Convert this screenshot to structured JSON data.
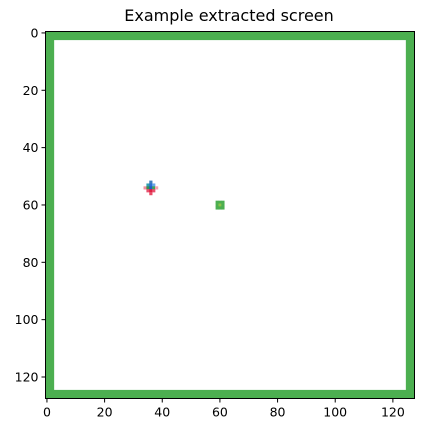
{
  "chart_data": {
    "type": "heatmap",
    "title": "Example extracted screen",
    "xlabel": "",
    "ylabel": "",
    "grid": false,
    "image_size": [
      128,
      128
    ],
    "xlim": [
      -0.5,
      127.5
    ],
    "ylim": [
      127.5,
      -0.5
    ],
    "x_ticks": [
      0,
      20,
      40,
      60,
      80,
      100,
      120
    ],
    "y_ticks": [
      0,
      20,
      40,
      60,
      80,
      100,
      120
    ],
    "background_color": "#ffffff",
    "border": {
      "color": "#4caf50",
      "thickness_cells": 3
    },
    "objects": [
      {
        "name": "agent",
        "cells": [
          {
            "x": 36,
            "y": 52,
            "color": "#3f7fbf"
          },
          {
            "x": 35,
            "y": 53,
            "color": "#2e9fb0"
          },
          {
            "x": 36,
            "y": 53,
            "color": "#2b6fd0"
          },
          {
            "x": 37,
            "y": 53,
            "color": "#6aa6e8"
          },
          {
            "x": 34,
            "y": 54,
            "color": "#f28fa0"
          },
          {
            "x": 35,
            "y": 54,
            "color": "#3a8f4f"
          },
          {
            "x": 36,
            "y": 54,
            "color": "#1f5fbf"
          },
          {
            "x": 37,
            "y": 54,
            "color": "#3fa35a"
          },
          {
            "x": 38,
            "y": 54,
            "color": "#f5a3b0"
          },
          {
            "x": 35,
            "y": 55,
            "color": "#e8506e"
          },
          {
            "x": 36,
            "y": 55,
            "color": "#e02040"
          },
          {
            "x": 37,
            "y": 55,
            "color": "#e8506e"
          },
          {
            "x": 36,
            "y": 56,
            "color": "#e84a66"
          }
        ]
      },
      {
        "name": "goal",
        "cells": [
          {
            "x": 59,
            "y": 59,
            "color": "#4caf50"
          },
          {
            "x": 60,
            "y": 59,
            "color": "#4caf50"
          },
          {
            "x": 61,
            "y": 59,
            "color": "#4caf50"
          },
          {
            "x": 59,
            "y": 60,
            "color": "#4caf50"
          },
          {
            "x": 60,
            "y": 60,
            "color": "#8bc34a"
          },
          {
            "x": 61,
            "y": 60,
            "color": "#4caf50"
          },
          {
            "x": 59,
            "y": 61,
            "color": "#4caf50"
          },
          {
            "x": 60,
            "y": 61,
            "color": "#4caf50"
          },
          {
            "x": 61,
            "y": 61,
            "color": "#4caf50"
          }
        ]
      }
    ]
  }
}
